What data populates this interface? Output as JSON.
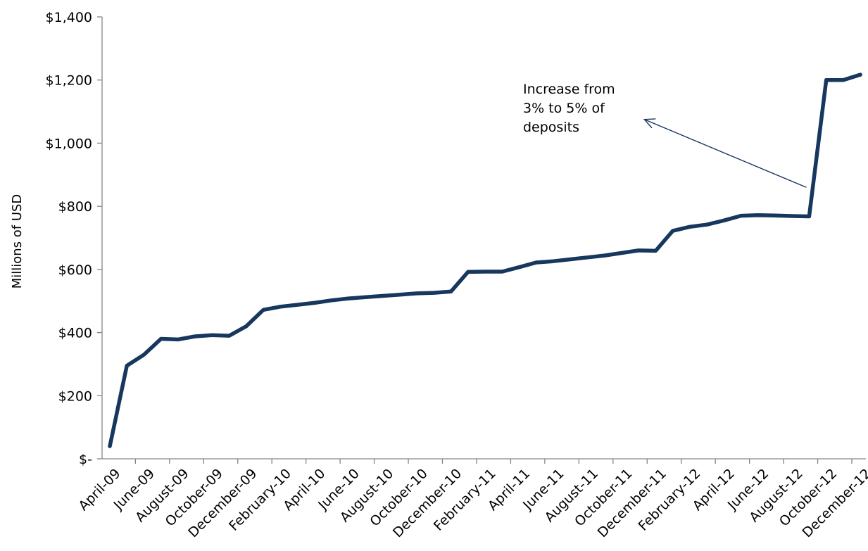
{
  "chart_data": {
    "type": "line",
    "ylabel": "Millions of USD",
    "ylim": [
      0,
      1400
    ],
    "yticks": [
      0,
      200,
      400,
      600,
      800,
      1000,
      1200,
      1400
    ],
    "ytick_labels": [
      "$-",
      "$200",
      "$400",
      "$600",
      "$800",
      "$1,000",
      "$1,200",
      "$1,400"
    ],
    "xtick_labels": [
      "April-09",
      "June-09",
      "August-09",
      "October-09",
      "December-09",
      "February-10",
      "April-10",
      "June-10",
      "August-10",
      "October-10",
      "December-10",
      "February-11",
      "April-11",
      "June-11",
      "August-11",
      "October-11",
      "December-11",
      "February-12",
      "April-12",
      "June-12",
      "August-12",
      "October-12",
      "December-12"
    ],
    "x": [
      "Apr-09",
      "May-09",
      "Jun-09",
      "Jul-09",
      "Aug-09",
      "Sep-09",
      "Oct-09",
      "Nov-09",
      "Dec-09",
      "Jan-10",
      "Feb-10",
      "Mar-10",
      "Apr-10",
      "May-10",
      "Jun-10",
      "Jul-10",
      "Aug-10",
      "Sep-10",
      "Oct-10",
      "Nov-10",
      "Dec-10",
      "Jan-11",
      "Feb-11",
      "Mar-11",
      "Apr-11",
      "May-11",
      "Jun-11",
      "Jul-11",
      "Aug-11",
      "Sep-11",
      "Oct-11",
      "Nov-11",
      "Dec-11",
      "Jan-12",
      "Feb-12",
      "Mar-12",
      "Apr-12",
      "May-12",
      "Jun-12",
      "Jul-12",
      "Aug-12",
      "Sep-12",
      "Oct-12",
      "Nov-12",
      "Dec-12"
    ],
    "series": [
      {
        "values": [
          40,
          295,
          330,
          380,
          378,
          388,
          392,
          390,
          420,
          472,
          482,
          488,
          494,
          502,
          508,
          512,
          516,
          520,
          524,
          526,
          530,
          592,
          593,
          593,
          607,
          622,
          626,
          632,
          638,
          644,
          652,
          660,
          659,
          722,
          735,
          742,
          755,
          770,
          772,
          771,
          769,
          768,
          1200,
          1200,
          1217
        ],
        "color": "#17375e"
      }
    ],
    "annotation": {
      "lines": [
        "Increase from",
        "3% to 5% of",
        "deposits"
      ],
      "arrow_from_x": "Sep-12",
      "arrow_from_y": 860,
      "arrow_to_x": "Dec-11",
      "arrow_to_y": 1075
    },
    "grid": false,
    "legend": "none"
  }
}
